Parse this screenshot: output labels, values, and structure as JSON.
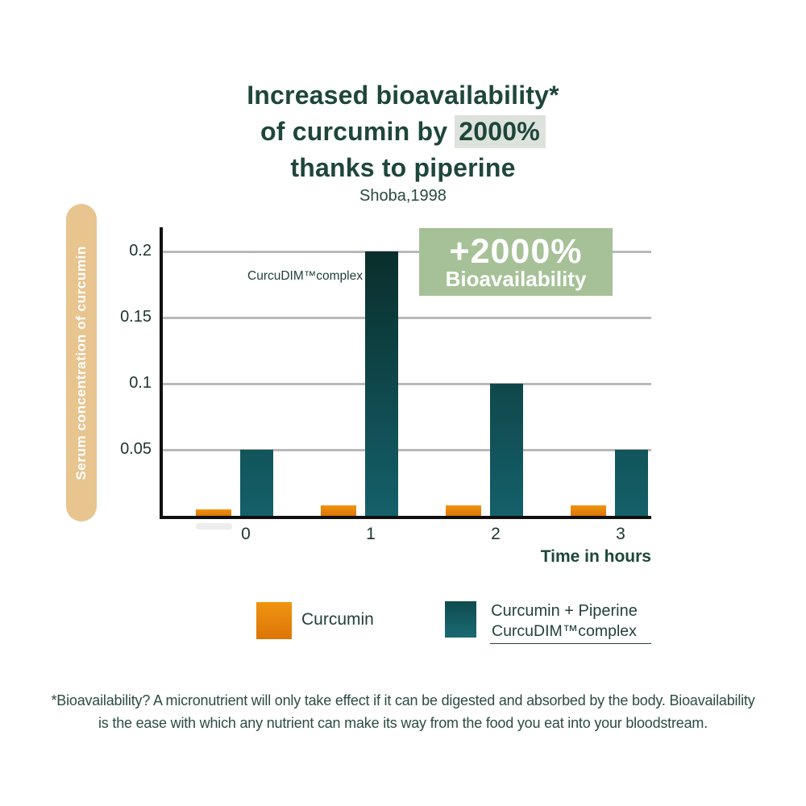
{
  "title": {
    "line1": "Increased bioavailability*",
    "line2_prefix": "of curcumin by ",
    "line2_highlight": "2000%",
    "line3": "thanks to piperine",
    "source": "Shoba,1998"
  },
  "chart_data": {
    "type": "bar",
    "title": "Increased bioavailability of curcumin by 2000% thanks to piperine",
    "source": "Shoba,1998",
    "xlabel": "Time in hours",
    "ylabel": "Serum concentration of curcumin",
    "categories": [
      "0",
      "1",
      "2",
      "3"
    ],
    "yticks": [
      0.05,
      0.1,
      0.15,
      0.2
    ],
    "ylim": [
      0,
      0.218
    ],
    "grid": "horizontal",
    "legend_position": "bottom",
    "series": [
      {
        "name": "Curcumin",
        "color": "#e5820c",
        "values": [
          0.005,
          0.008,
          0.008,
          0.008
        ]
      },
      {
        "name": "Curcumin + Piperine CurcuDIM™complex",
        "color": "#14606a",
        "values": [
          0.05,
          0.2,
          0.1,
          0.05
        ]
      }
    ],
    "annotation": "CurcuDIM™complex",
    "badge": {
      "line1": "+2000%",
      "line2": "Bioavailability"
    }
  },
  "legend": {
    "items": [
      {
        "label": "Curcumin"
      },
      {
        "label_line1": "Curcumin + Piperine",
        "label_line2": "CurcuDIM™complex"
      }
    ]
  },
  "footnote": "*Bioavailability? A micronutrient will only take effect if it can be digested and absorbed by the body. Bioavailability is the ease with which any nutrient can make its way from the food you eat into your bloodstream.",
  "colors": {
    "title_green": "#1e463b",
    "highlight_bg": "#dde3dc",
    "badge_bg": "#a6c197",
    "ylabel_pill_bg": "#e8c48f",
    "teal": "#14606a",
    "teal_dark": "#0a2e2b",
    "orange_top": "#f0940f",
    "orange_bottom": "#dc7507",
    "gridline": "#b9b9b9",
    "axis": "#101010",
    "text_dark": "#1d332f"
  }
}
